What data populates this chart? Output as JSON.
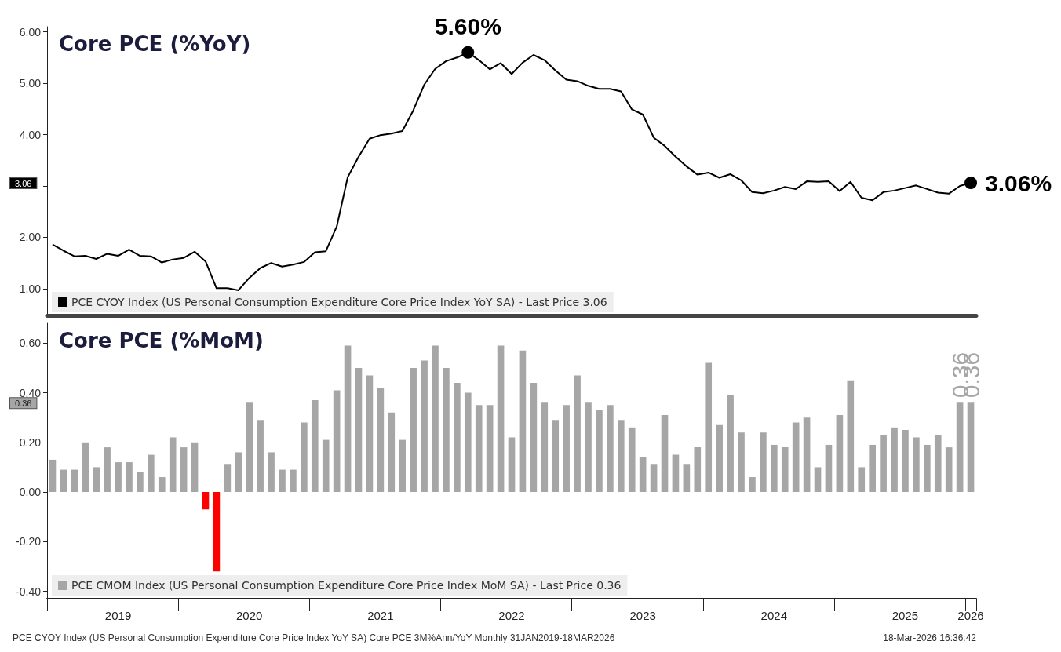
{
  "chart_data": [
    {
      "type": "line",
      "title": "Core PCE (%YoY)",
      "categories": [
        null,
        null,
        null,
        null,
        null,
        null,
        "2019",
        null,
        null,
        null,
        null,
        null,
        null,
        null,
        null,
        null,
        null,
        null,
        "2020",
        null,
        null,
        null,
        null,
        null,
        null,
        null,
        null,
        null,
        null,
        null,
        "2021",
        null,
        null,
        null,
        null,
        null,
        null,
        null,
        null,
        null,
        null,
        null,
        "2022",
        null,
        null,
        null,
        null,
        null,
        null,
        null,
        null,
        null,
        null,
        null,
        "2023",
        null,
        null,
        null,
        null,
        null,
        null,
        null,
        null,
        null,
        null,
        null,
        "2024",
        null,
        null,
        null,
        null,
        null,
        null,
        null,
        null,
        null,
        null,
        null,
        "2025",
        null,
        null,
        null,
        null,
        null,
        "2026"
      ],
      "series": [
        {
          "name": "PCE CYOY Index (US Personal Consumption Expenditure Core Price Index YoY SA) - Last Price 3.06",
          "color": "#000000",
          "values": [
            1.86,
            1.74,
            1.63,
            1.64,
            1.58,
            1.68,
            1.64,
            1.76,
            1.64,
            1.63,
            1.51,
            1.57,
            1.6,
            1.72,
            1.53,
            1.01,
            1.01,
            0.97,
            1.21,
            1.4,
            1.5,
            1.43,
            1.47,
            1.52,
            1.71,
            1.73,
            2.21,
            3.17,
            3.57,
            3.92,
            3.99,
            4.02,
            4.07,
            4.47,
            4.97,
            5.28,
            5.43,
            5.5,
            5.6,
            5.45,
            5.27,
            5.39,
            5.18,
            5.4,
            5.55,
            5.45,
            5.25,
            5.07,
            5.04,
            4.95,
            4.89,
            4.89,
            4.84,
            4.49,
            4.39,
            3.94,
            3.78,
            3.57,
            3.38,
            3.22,
            3.26,
            3.16,
            3.23,
            3.11,
            2.88,
            2.86,
            2.91,
            2.98,
            2.94,
            3.09,
            3.08,
            3.09,
            2.9,
            3.08,
            2.77,
            2.72,
            2.88,
            2.91,
            2.96,
            3.01,
            2.94,
            2.87,
            2.85,
            3.0,
            3.06
          ],
          "value_labels": [
            null,
            null,
            null,
            null,
            null,
            null,
            null,
            null,
            null,
            null,
            null,
            null,
            null,
            null,
            null,
            null,
            null,
            null,
            null,
            null,
            null,
            null,
            null,
            null,
            null,
            null,
            null,
            null,
            null,
            null,
            null,
            null,
            null,
            null,
            null,
            null,
            null,
            null,
            "5.60%",
            null,
            null,
            null,
            null,
            null,
            null,
            null,
            null,
            null,
            null,
            null,
            null,
            null,
            null,
            null,
            null,
            null,
            null,
            null,
            null,
            null,
            null,
            null,
            null,
            null,
            null,
            null,
            null,
            null,
            null,
            null,
            null,
            null,
            null,
            null,
            null,
            null,
            null,
            null,
            null,
            null,
            null,
            null,
            null,
            null,
            "3.06%"
          ]
        }
      ],
      "ylim": [
        0.48,
        6.1
      ],
      "yticks": [
        {
          "value": 1,
          "label": "1.00"
        },
        {
          "value": 2,
          "label": "2.00"
        },
        {
          "value": 3,
          "label": null
        },
        {
          "value": 4,
          "label": "4.00"
        },
        {
          "value": 5,
          "label": "5.00"
        },
        {
          "value": 6,
          "label": "6.00"
        }
      ],
      "annotations": [
        "3.06"
      ],
      "tick_labels": "y",
      "legend": "bottom left"
    },
    {
      "type": "bar",
      "title": "Core PCE (%MoM)",
      "categories": [
        null,
        null,
        null,
        null,
        null,
        null,
        "2019",
        null,
        null,
        null,
        null,
        null,
        null,
        null,
        null,
        null,
        null,
        null,
        "2020",
        null,
        null,
        null,
        null,
        null,
        null,
        null,
        null,
        null,
        null,
        null,
        "2021",
        null,
        null,
        null,
        null,
        null,
        null,
        null,
        null,
        null,
        null,
        null,
        "2022",
        null,
        null,
        null,
        null,
        null,
        null,
        null,
        null,
        null,
        null,
        null,
        "2023",
        null,
        null,
        null,
        null,
        null,
        null,
        null,
        null,
        null,
        null,
        null,
        "2024",
        null,
        null,
        null,
        null,
        null,
        null,
        null,
        null,
        null,
        null,
        null,
        "2025",
        null,
        null,
        null,
        null,
        null,
        "2026"
      ],
      "series": [
        {
          "name": "PCE CMOM Index (US Personal Consumption Expenditure Core Price Index MoM SA) - Last Price 0.36",
          "color": "#a6a6a6",
          "values": [
            0.13,
            0.09,
            0.09,
            0.2,
            0.1,
            0.18,
            0.12,
            0.12,
            0.08,
            0.15,
            0.06,
            0.22,
            0.18,
            0.2,
            -0.07,
            -0.32,
            0.11,
            0.16,
            0.36,
            0.29,
            0.16,
            0.09,
            0.09,
            0.28,
            0.37,
            0.21,
            0.41,
            0.59,
            0.5,
            0.47,
            0.42,
            0.32,
            0.21,
            0.5,
            0.53,
            0.59,
            0.5,
            0.44,
            0.4,
            0.35,
            0.35,
            0.59,
            0.22,
            0.57,
            0.44,
            0.36,
            0.29,
            0.35,
            0.47,
            0.36,
            0.33,
            0.35,
            0.29,
            0.26,
            0.14,
            0.11,
            0.31,
            0.15,
            0.11,
            0.18,
            0.52,
            0.27,
            0.39,
            0.24,
            0.06,
            0.24,
            0.19,
            0.18,
            0.28,
            0.3,
            0.1,
            0.19,
            0.31,
            0.45,
            0.1,
            0.19,
            0.23,
            0.26,
            0.25,
            0.22,
            0.19,
            0.23,
            0.18,
            0.36,
            0.36
          ],
          "colors": [
            "#a6a6a6",
            "#a6a6a6",
            "#a6a6a6",
            "#a6a6a6",
            "#a6a6a6",
            "#a6a6a6",
            "#a6a6a6",
            "#a6a6a6",
            "#a6a6a6",
            "#a6a6a6",
            "#a6a6a6",
            "#a6a6a6",
            "#a6a6a6",
            "#a6a6a6",
            "#ff0000",
            "#ff0000",
            "#a6a6a6",
            "#a6a6a6",
            "#a6a6a6",
            "#a6a6a6",
            "#a6a6a6",
            "#a6a6a6",
            "#a6a6a6",
            "#a6a6a6",
            "#a6a6a6",
            "#a6a6a6",
            "#a6a6a6",
            "#a6a6a6",
            "#a6a6a6",
            "#a6a6a6",
            "#a6a6a6",
            "#a6a6a6",
            "#a6a6a6",
            "#a6a6a6",
            "#a6a6a6",
            "#a6a6a6",
            "#a6a6a6",
            "#a6a6a6",
            "#a6a6a6",
            "#a6a6a6",
            "#a6a6a6",
            "#a6a6a6",
            "#a6a6a6",
            "#a6a6a6",
            "#a6a6a6",
            "#a6a6a6",
            "#a6a6a6",
            "#a6a6a6",
            "#a6a6a6",
            "#a6a6a6",
            "#a6a6a6",
            "#a6a6a6",
            "#a6a6a6",
            "#a6a6a6",
            "#a6a6a6",
            "#a6a6a6",
            "#a6a6a6",
            "#a6a6a6",
            "#a6a6a6",
            "#a6a6a6",
            "#a6a6a6",
            "#a6a6a6",
            "#a6a6a6",
            "#a6a6a6",
            "#a6a6a6",
            "#a6a6a6",
            "#a6a6a6",
            "#a6a6a6",
            "#a6a6a6",
            "#a6a6a6",
            "#a6a6a6",
            "#a6a6a6",
            "#a6a6a6",
            "#a6a6a6",
            "#a6a6a6",
            "#a6a6a6",
            "#a6a6a6",
            "#a6a6a6",
            "#a6a6a6",
            "#a6a6a6",
            "#a6a6a6",
            "#a6a6a6",
            "#a6a6a6",
            "#a6a6a6",
            "#a6a6a6"
          ],
          "value_labels": [
            null,
            null,
            null,
            null,
            null,
            null,
            null,
            null,
            null,
            null,
            null,
            null,
            null,
            null,
            null,
            null,
            null,
            null,
            null,
            null,
            null,
            null,
            null,
            null,
            null,
            null,
            null,
            null,
            null,
            null,
            null,
            null,
            null,
            null,
            null,
            null,
            null,
            null,
            null,
            null,
            null,
            null,
            null,
            null,
            null,
            null,
            null,
            null,
            null,
            null,
            null,
            null,
            null,
            null,
            null,
            null,
            null,
            null,
            null,
            null,
            null,
            null,
            null,
            null,
            null,
            null,
            null,
            null,
            null,
            null,
            null,
            null,
            null,
            null,
            null,
            null,
            null,
            null,
            null,
            null,
            null,
            null,
            null,
            "0.36",
            "0.36"
          ]
        }
      ],
      "ylim": [
        -0.43,
        0.68
      ],
      "yticks": [
        {
          "value": -0.4,
          "label": "-0.40"
        },
        {
          "value": -0.2,
          "label": "-0.20"
        },
        {
          "value": 0,
          "label": "0.00"
        },
        {
          "value": 0.2,
          "label": "0.20"
        },
        {
          "value": 0.4,
          "label": "0.40"
        },
        {
          "value": 0.6,
          "label": "0.60"
        }
      ],
      "annotations": [
        "0.36",
        "PCE CYOY Index (US Personal Consumption Expenditure Core Price Index YoY SA) Core PCE 3M%Ann/YoY Monthly 31JAN2019-18MAR2026",
        "18-Mar-2026 16:36:42"
      ],
      "legend": "bottom left"
    }
  ]
}
